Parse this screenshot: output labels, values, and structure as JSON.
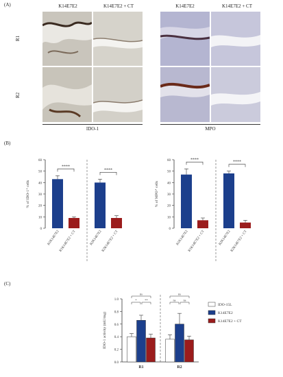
{
  "panel_A": {
    "letter": "(A)",
    "columns": [
      "K14E7E2",
      "K14E7E2 + CT",
      "K14E7E2",
      "K14E7E2 + CT"
    ],
    "rows": [
      "R1",
      "R2"
    ],
    "group_labels": [
      "IDO-1",
      "MPO"
    ]
  },
  "panel_B": {
    "letter": "(B)",
    "stars": "****",
    "chart_data": [
      {
        "type": "bar",
        "ylabel": "% of IDO-1⁺ cells",
        "ylim": [
          0,
          60
        ],
        "yticks": [
          "0",
          "10",
          "20",
          "30",
          "40",
          "50",
          "60"
        ],
        "categories": [
          "R1K14E7E2",
          "R1K14E7E2 + CT",
          "R2K14E7E2",
          "R2K14E7E2 + CT"
        ],
        "values": [
          43,
          9,
          40,
          9
        ],
        "errors": [
          3,
          1,
          3,
          2
        ],
        "colors": [
          "#1c3f8c",
          "#9b1c1c",
          "#1c3f8c",
          "#9b1c1c"
        ]
      },
      {
        "type": "bar",
        "ylabel": "% of MPO⁺ cells",
        "ylim": [
          0,
          60
        ],
        "yticks": [
          "0",
          "10",
          "20",
          "30",
          "40",
          "50",
          "60"
        ],
        "categories": [
          "R1K14E7E2",
          "R1K14E7E2 + CT",
          "R2K14E7E2",
          "R2K14E7E2 + CT"
        ],
        "values": [
          47,
          7,
          48,
          5
        ],
        "errors": [
          5,
          2,
          2,
          2
        ],
        "colors": [
          "#1c3f8c",
          "#9b1c1c",
          "#1c3f8c",
          "#9b1c1c"
        ]
      }
    ]
  },
  "panel_C": {
    "letter": "(C)",
    "chart_data": {
      "type": "bar",
      "ylabel": "IDO-1 activity (mU/mg)",
      "ylim": [
        0,
        1.0
      ],
      "yticks": [
        "0.0",
        "0.2",
        "0.4",
        "0.6",
        "0.8",
        "1.0"
      ],
      "categories": [
        "R1",
        "R2"
      ],
      "series": [
        {
          "name": "IDO-15L",
          "values": [
            0.4,
            0.36
          ],
          "errors": [
            0.05,
            0.07
          ],
          "color": "#ffffff"
        },
        {
          "name": "K14E7E2",
          "values": [
            0.66,
            0.6
          ],
          "errors": [
            0.08,
            0.17
          ],
          "color": "#1c3f8c"
        },
        {
          "name": "K14E7E2 + CT",
          "values": [
            0.38,
            0.35
          ],
          "errors": [
            0.06,
            0.06
          ],
          "color": "#9b1c1c"
        }
      ],
      "sig_R1": [
        "ns",
        "*",
        "**"
      ],
      "sig_R2": [
        "ns",
        "ns",
        "ns"
      ]
    }
  }
}
